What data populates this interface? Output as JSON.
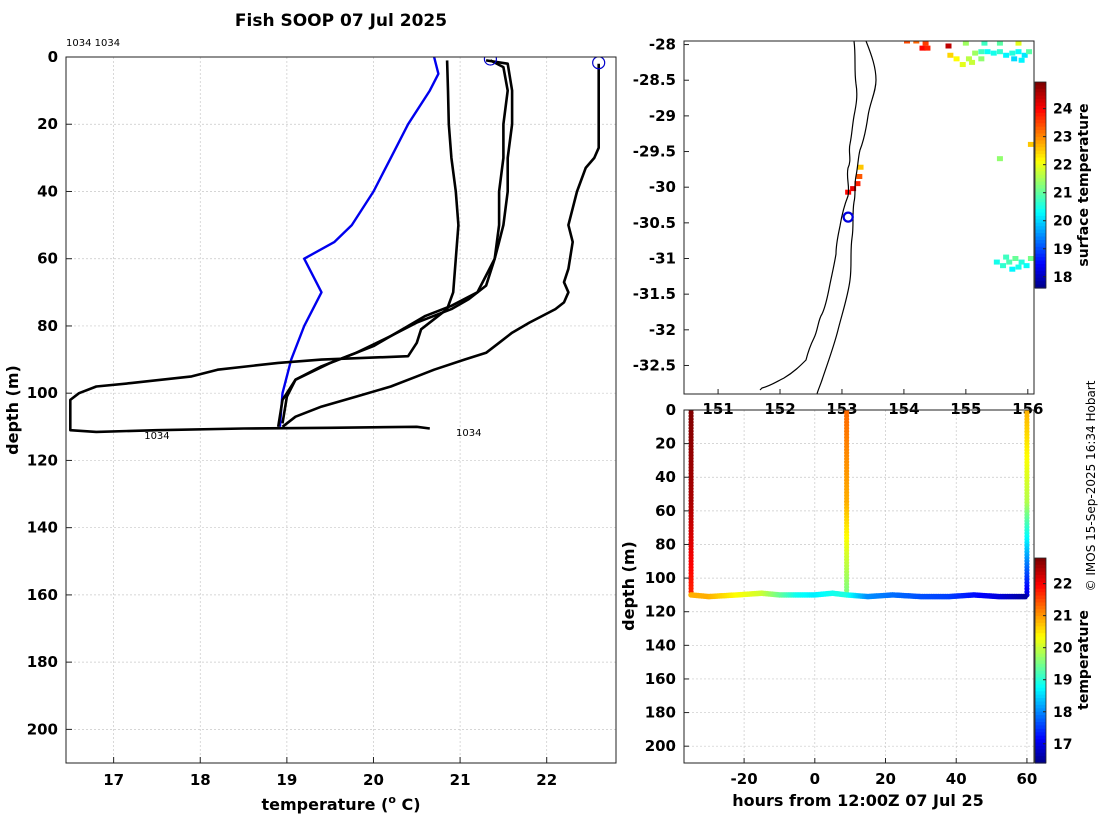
{
  "title": "Fish SOOP 07 Jul 2025",
  "annotation_id": "1034 1034",
  "credit": "© IMOS 15-Sep-2025 16:34 Hobart",
  "chart_data": [
    {
      "id": "profile",
      "type": "line",
      "xlabel_main": "temperature (",
      "xlabel_sup": "o",
      "xlabel_tail": " C)",
      "ylabel": "depth (m)",
      "xlim": [
        16.45,
        22.8
      ],
      "ylim": [
        210,
        0
      ],
      "xticks": [
        17,
        18,
        19,
        20,
        21,
        22
      ],
      "yticks": [
        0,
        20,
        40,
        60,
        80,
        100,
        120,
        140,
        160,
        180,
        200
      ],
      "labels": [
        {
          "text": "1034",
          "x": 17.5,
          "y": 112.5
        },
        {
          "text": "1034",
          "x": 21.1,
          "y": 111.5
        }
      ],
      "markers": [
        {
          "name": "surface",
          "x": 21.35,
          "y": 0.6,
          "color": "#0000cc"
        },
        {
          "name": "surface",
          "x": 22.6,
          "y": 1.7,
          "color": "#0000cc"
        }
      ],
      "series": [
        {
          "name": "current",
          "color": "#0000ee",
          "x": [
            20.7,
            20.75,
            20.65,
            20.4,
            20.2,
            20.0,
            19.75,
            19.55,
            19.2,
            19.4,
            19.3,
            19.2,
            19.05,
            18.95,
            18.92
          ],
          "y": [
            0,
            5,
            10,
            20,
            30,
            40,
            50,
            55,
            60,
            70,
            75,
            80,
            90,
            100,
            110
          ]
        },
        {
          "name": "profile-1",
          "color": "#000000",
          "x": [
            20.85,
            20.86,
            20.87,
            20.9,
            20.95,
            20.98,
            20.95,
            20.92,
            20.85,
            20.7,
            20.55,
            20.5,
            20.4,
            19.4,
            18.9,
            18.2,
            17.9,
            17.2,
            16.8,
            16.6,
            16.5,
            16.5,
            16.8,
            17.5,
            18.5,
            19.5,
            20.5,
            20.65
          ],
          "y": [
            1,
            10,
            20,
            30,
            40,
            50,
            60,
            70,
            75,
            78,
            81,
            85,
            89,
            90,
            91,
            93,
            95,
            97,
            98,
            100,
            102,
            111,
            111.5,
            111,
            110.5,
            110.3,
            110,
            110.5
          ]
        },
        {
          "name": "profile-2",
          "color": "#000000",
          "x": [
            21.3,
            21.55,
            21.6,
            21.6,
            21.55,
            21.55,
            21.5,
            21.45,
            21.4,
            21.3,
            21.2,
            20.9,
            20.6,
            20.4,
            20.0,
            19.5,
            19.1,
            18.95,
            18.9
          ],
          "y": [
            1,
            2,
            10,
            20,
            30,
            40,
            50,
            55,
            60,
            65,
            70,
            74,
            77,
            80,
            86,
            91,
            96,
            102,
            110
          ]
        },
        {
          "name": "profile-3",
          "color": "#000000",
          "x": [
            21.35,
            21.5,
            21.55,
            21.5,
            21.5,
            21.45,
            21.45,
            21.4,
            21.3,
            21.1,
            20.9,
            20.5,
            20.2,
            19.8,
            19.4,
            19.1,
            19.0,
            18.95
          ],
          "y": [
            1,
            3,
            10,
            20,
            30,
            40,
            50,
            60,
            68,
            72,
            75,
            79,
            83,
            88,
            92,
            96,
            101,
            109
          ]
        },
        {
          "name": "profile-4",
          "color": "#000000",
          "x": [
            22.6,
            22.6,
            22.6,
            22.6,
            22.55,
            22.45,
            22.35,
            22.3,
            22.25,
            22.3,
            22.25,
            22.2,
            22.25,
            22.2,
            22.1,
            21.95,
            21.8,
            21.6,
            21.45,
            21.3,
            21.05,
            20.7,
            20.5,
            20.2,
            19.8,
            19.4,
            19.1,
            18.95
          ],
          "y": [
            2,
            10,
            20,
            27,
            30,
            33,
            40,
            45,
            50,
            55,
            63,
            67,
            70,
            73,
            75,
            77,
            79,
            82,
            85,
            88,
            90,
            93,
            95,
            98,
            101,
            104,
            107,
            110
          ]
        }
      ]
    },
    {
      "id": "map",
      "type": "scatter",
      "xlim": [
        150.45,
        156.1
      ],
      "ylim": [
        -32.9,
        -27.95
      ],
      "xticks": [
        151,
        152,
        153,
        154,
        155,
        156
      ],
      "yticks": [
        -28,
        -28.5,
        -29,
        -29.5,
        -30,
        -30.5,
        -31,
        -31.5,
        -32,
        -32.5
      ],
      "ship_position": {
        "lon": 153.1,
        "lat": -30.42
      },
      "colorbar": {
        "label": "surface temperature",
        "min": 17.6,
        "max": 24.95,
        "ticks": [
          18,
          19,
          20,
          21,
          22,
          23,
          24
        ]
      },
      "sst_pixels": [
        [
          154.05,
          -27.95,
          23.5
        ],
        [
          154.2,
          -27.95,
          23.3
        ],
        [
          154.35,
          -27.98,
          23.6
        ],
        [
          154.3,
          -28.05,
          24.0
        ],
        [
          154.38,
          -28.05,
          23.8
        ],
        [
          154.72,
          -28.02,
          24.5
        ],
        [
          155.0,
          -27.98,
          21.5
        ],
        [
          155.3,
          -27.98,
          20.8
        ],
        [
          155.55,
          -27.98,
          21.0
        ],
        [
          155.85,
          -27.98,
          22.0
        ],
        [
          154.75,
          -28.15,
          22.5
        ],
        [
          154.85,
          -28.2,
          22.2
        ],
        [
          154.95,
          -28.28,
          22.0
        ],
        [
          155.05,
          -28.2,
          21.7
        ],
        [
          155.15,
          -28.12,
          21.5
        ],
        [
          155.25,
          -28.1,
          20.8
        ],
        [
          155.35,
          -28.1,
          20.4
        ],
        [
          155.45,
          -28.12,
          20.5
        ],
        [
          155.55,
          -28.1,
          20.7
        ],
        [
          155.65,
          -28.15,
          20.3
        ],
        [
          155.75,
          -28.12,
          20.6
        ],
        [
          155.85,
          -28.1,
          20.4
        ],
        [
          155.95,
          -28.15,
          20.2
        ],
        [
          156.02,
          -28.1,
          21.0
        ],
        [
          155.1,
          -28.25,
          21.8
        ],
        [
          155.25,
          -28.2,
          21.4
        ],
        [
          155.78,
          -28.2,
          20.1
        ],
        [
          155.9,
          -28.22,
          20.3
        ],
        [
          153.3,
          -29.72,
          22.6
        ],
        [
          153.28,
          -29.85,
          23.4
        ],
        [
          153.25,
          -29.95,
          23.8
        ],
        [
          153.18,
          -30.02,
          24.2
        ],
        [
          153.1,
          -30.07,
          24.0
        ],
        [
          155.55,
          -29.6,
          21.4
        ],
        [
          156.05,
          -29.4,
          22.6
        ],
        [
          155.5,
          -31.05,
          20.5
        ],
        [
          155.6,
          -31.1,
          20.7
        ],
        [
          155.7,
          -31.05,
          20.9
        ],
        [
          155.8,
          -31.0,
          21.1
        ],
        [
          155.9,
          -31.05,
          20.6
        ],
        [
          155.98,
          -31.1,
          20.4
        ],
        [
          156.05,
          -31.0,
          21.2
        ],
        [
          155.65,
          -30.98,
          20.8
        ],
        [
          155.85,
          -31.12,
          20.5
        ],
        [
          155.75,
          -31.15,
          20.3
        ]
      ]
    },
    {
      "id": "section",
      "type": "scatter",
      "xlabel": "hours from 12:00Z 07 Jul 25",
      "ylabel": "depth (m)",
      "xlim": [
        -37,
        62
      ],
      "ylim": [
        210,
        0
      ],
      "xticks": [
        -20,
        0,
        20,
        40,
        60
      ],
      "yticks": [
        0,
        20,
        40,
        60,
        80,
        100,
        120,
        140,
        160,
        180,
        200
      ],
      "colorbar": {
        "label": "temperature",
        "min": 16.4,
        "max": 22.8,
        "ticks": [
          17,
          18,
          19,
          20,
          21,
          22
        ]
      },
      "casts": [
        {
          "hour": -35,
          "top_temp": 22.8,
          "bottom_temp": 21.8,
          "depth_max": 108
        },
        {
          "hour": 9,
          "top_temp": 21.35,
          "bottom_temp": 19.6,
          "depth_max": 109
        },
        {
          "hour": 60,
          "top_temp": 20.9,
          "bottom_temp": 17.0,
          "depth_max": 110
        }
      ],
      "bottom_track": {
        "hours": [
          -35,
          -30,
          -22,
          -15,
          -10,
          -5,
          0,
          5,
          9,
          15,
          22,
          30,
          38,
          45,
          52,
          58,
          60
        ],
        "depths": [
          110,
          111,
          110,
          109,
          110,
          110,
          110,
          109,
          110,
          111,
          110,
          111,
          111,
          110,
          111,
          111,
          111
        ],
        "temps": [
          20.9,
          20.9,
          20.4,
          20.1,
          19.5,
          18.9,
          18.7,
          18.9,
          19.0,
          18.1,
          17.9,
          17.7,
          17.6,
          17.3,
          17.0,
          16.7,
          16.6
        ]
      }
    }
  ]
}
